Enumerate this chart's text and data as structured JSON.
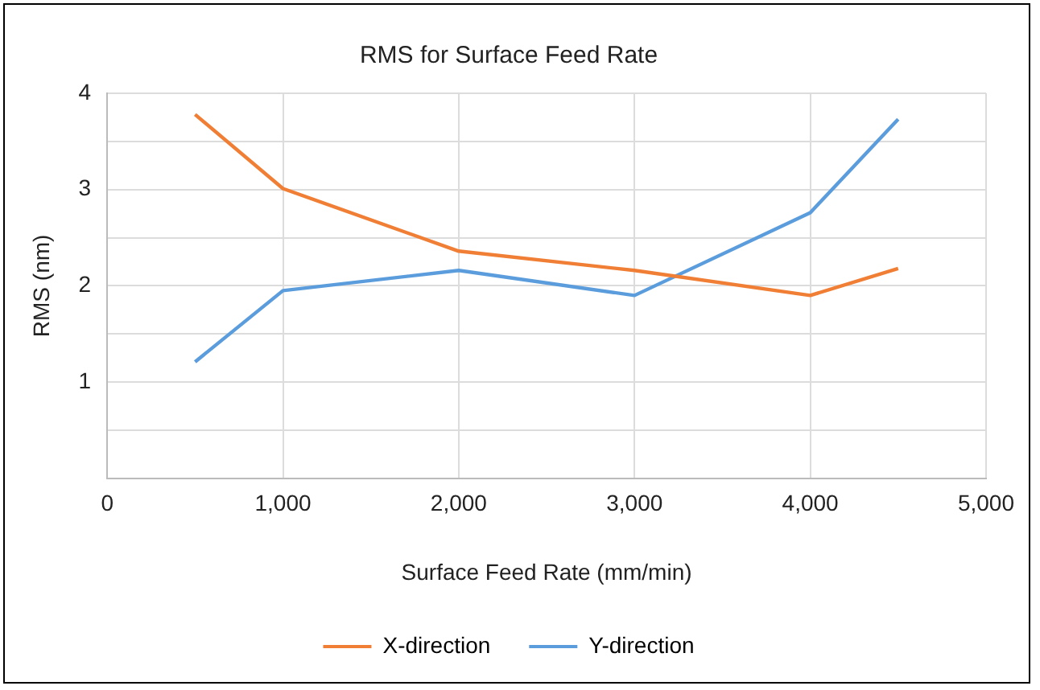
{
  "chart_data": {
    "type": "line",
    "title": "RMS for Surface Feed Rate",
    "xlabel": "Surface Feed Rate (mm/min)",
    "ylabel": "RMS (nm)",
    "x": [
      500,
      1000,
      2000,
      3000,
      4000,
      4500
    ],
    "series": [
      {
        "name": "X-direction",
        "color": "#f07f35",
        "values": [
          3.78,
          3.01,
          2.36,
          2.16,
          1.9,
          2.18
        ]
      },
      {
        "name": "Y-direction",
        "color": "#5b9ddc",
        "values": [
          1.21,
          1.95,
          2.16,
          1.9,
          2.76,
          3.73
        ]
      }
    ],
    "xlim": [
      0,
      5000
    ],
    "xticks": [
      0,
      {
        "value": 1000,
        "label": "1,000"
      },
      {
        "value": 2000,
        "label": "2,000"
      },
      {
        "value": 3000,
        "label": "3,000"
      },
      {
        "value": 4000,
        "label": "4,000"
      },
      {
        "value": 5000,
        "label": "5,000"
      }
    ],
    "ylim": [
      0,
      4
    ],
    "yticks": [
      {
        "value": 0,
        "label": null
      },
      {
        "value": 0.5,
        "label": null
      },
      1,
      {
        "value": 1.5,
        "label": null
      },
      2,
      {
        "value": 2.5,
        "label": null
      },
      3,
      {
        "value": 3.5,
        "label": null
      },
      4
    ],
    "grid": true,
    "legend": "bottom",
    "marker": "none",
    "line_style": "solid"
  }
}
